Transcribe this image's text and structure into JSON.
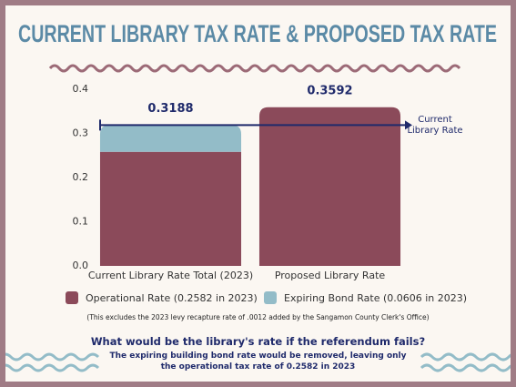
{
  "chart_data": {
    "type": "stacked_bar",
    "title": "CURRENT LIBRARY TAX RATE & PROPOSED TAX RATE",
    "categories": [
      "Current Library Rate Total (2023)",
      "Proposed Library Rate"
    ],
    "series": [
      {
        "name": "Operational Rate (0.2582 in 2023)",
        "color": "#8b4a5a",
        "values": [
          0.2582,
          0.3592
        ]
      },
      {
        "name": "Expiring Bond Rate (0.0606 in 2023)",
        "color": "#93bcc8",
        "values": [
          0.0606,
          null
        ]
      }
    ],
    "totals": [
      0.3188,
      0.3592
    ],
    "ylim": [
      0,
      0.4
    ],
    "yticks": [
      {
        "value": 0,
        "label": "0.0"
      },
      0.1,
      0.2,
      0.3,
      0.4
    ],
    "annotation": "Current Library Rate",
    "annotation_color": "#1f2a6b",
    "note": "(This excludes the 2023 levy recapture rate of .0012 added by the Sangamon County Clerk's Office)",
    "question": "What would be the library's rate if the referendum fails?",
    "answer": "The expiring building bond rate would be removed, leaving only the operational tax rate of 0.2582 in 2023"
  }
}
